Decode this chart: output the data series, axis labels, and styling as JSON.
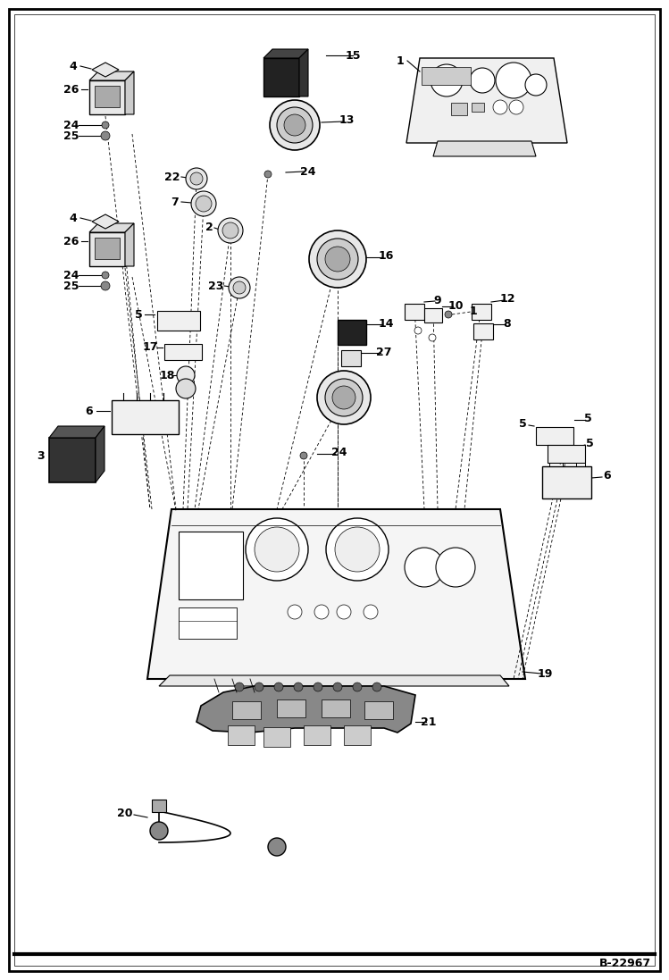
{
  "background_color": "#ffffff",
  "border_color": "#000000",
  "diagram_ref": "B-22967",
  "line_color": "#000000",
  "text_color": "#000000",
  "label_font_size": 9,
  "fig_width": 7.49,
  "fig_height": 10.97,
  "dpi": 100
}
